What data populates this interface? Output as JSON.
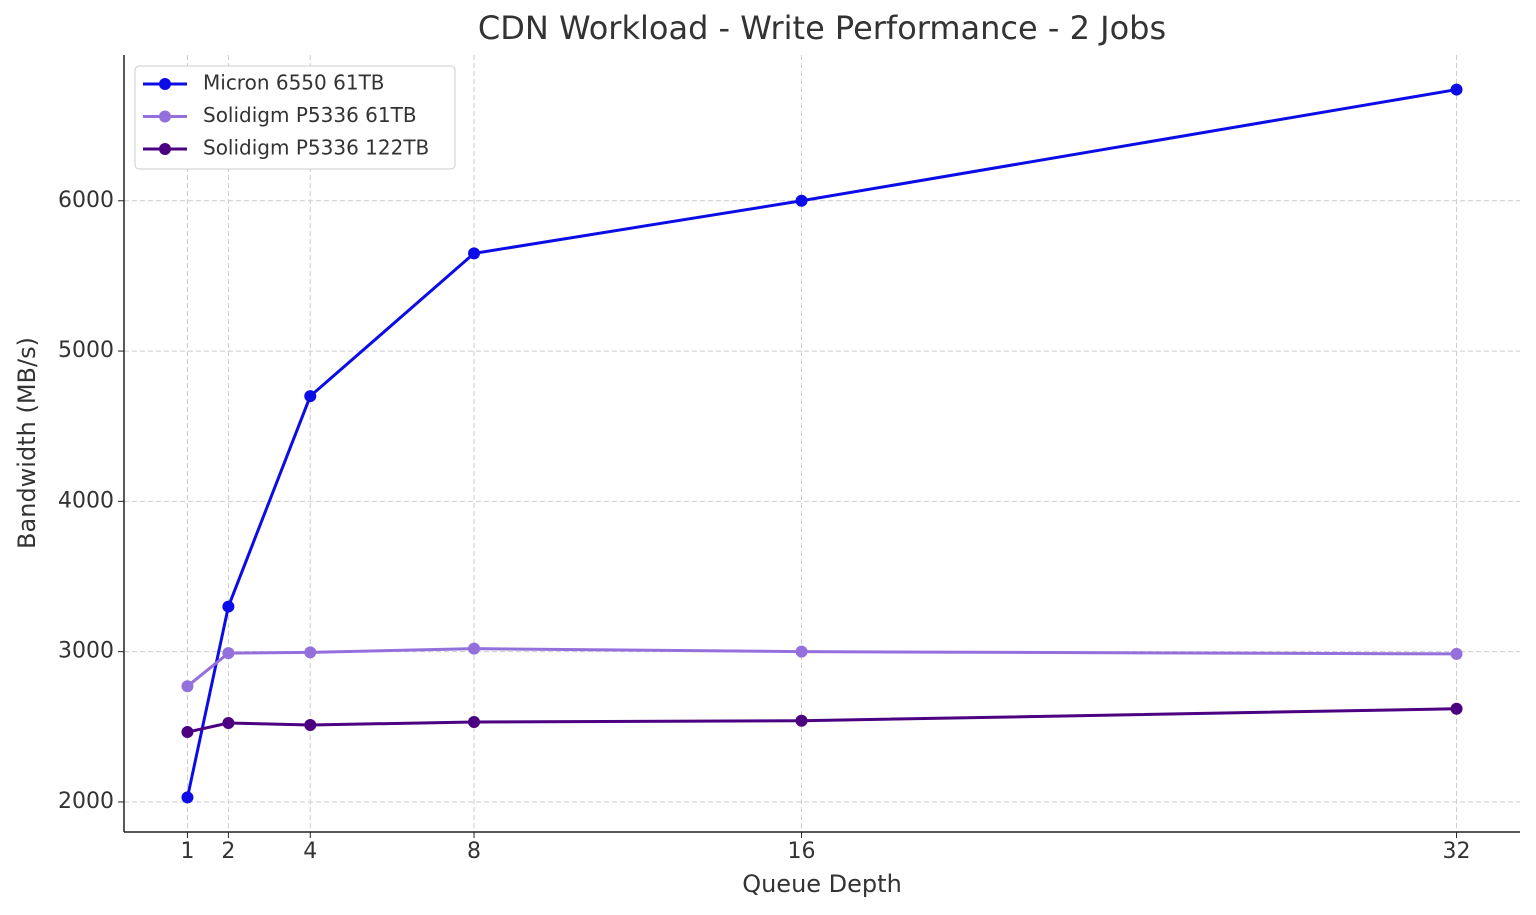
{
  "chart_data": {
    "type": "line",
    "title": "CDN Workload - Write Performance - 2 Jobs",
    "x_label": "Queue Depth",
    "y_label": "Bandwidth (MB/s)",
    "x": [
      1,
      2,
      4,
      8,
      16,
      32
    ],
    "series": [
      {
        "name": "Micron 6550 61TB",
        "color": "#0c0ce6",
        "values": [
          2030,
          3300,
          4700,
          5650,
          6000,
          6740
        ]
      },
      {
        "name": "Solidigm P5336 61TB",
        "color": "#9370db",
        "values": [
          2770,
          2990,
          2995,
          3020,
          3000,
          2985
        ]
      },
      {
        "name": "Solidigm P5336 122TB",
        "color": "#4b0082",
        "values": [
          2465,
          2525,
          2512,
          2532,
          2540,
          2620
        ]
      }
    ],
    "xlim": [
      -0.55,
      33.55
    ],
    "ylim": [
      1800,
      6970
    ],
    "xticks": [
      1,
      2,
      4,
      8,
      16,
      32
    ],
    "yticks": [
      2000,
      3000,
      4000,
      5000,
      6000
    ],
    "grid": true,
    "legend": "upper-left"
  }
}
